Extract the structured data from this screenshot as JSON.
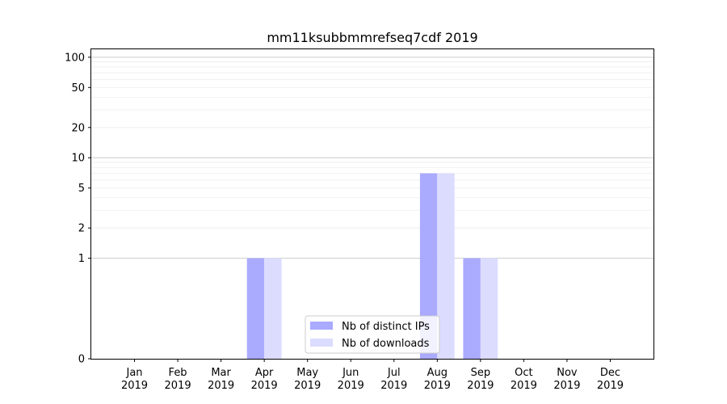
{
  "chart_data": {
    "type": "bar",
    "title": "mm11ksubbmmrefseq7cdf 2019",
    "xlabel": "",
    "ylabel": "",
    "yscale": "symlog",
    "ylim": [
      0,
      120
    ],
    "yticks": [
      0,
      1,
      2,
      5,
      10,
      20,
      50,
      100
    ],
    "grid": true,
    "legend_position": "lower center",
    "categories": [
      [
        "Jan",
        "2019"
      ],
      [
        "Feb",
        "2019"
      ],
      [
        "Mar",
        "2019"
      ],
      [
        "Apr",
        "2019"
      ],
      [
        "May",
        "2019"
      ],
      [
        "Jun",
        "2019"
      ],
      [
        "Jul",
        "2019"
      ],
      [
        "Aug",
        "2019"
      ],
      [
        "Sep",
        "2019"
      ],
      [
        "Oct",
        "2019"
      ],
      [
        "Nov",
        "2019"
      ],
      [
        "Dec",
        "2019"
      ]
    ],
    "series": [
      {
        "name": "Nb of distinct IPs",
        "color": "#aaaaff",
        "values": [
          0,
          0,
          0,
          1,
          0,
          0,
          0,
          7,
          1,
          0,
          0,
          0
        ]
      },
      {
        "name": "Nb of downloads",
        "color": "#dcdcff",
        "values": [
          0,
          0,
          0,
          1,
          0,
          0,
          0,
          7,
          1,
          0,
          0,
          0
        ]
      }
    ]
  }
}
